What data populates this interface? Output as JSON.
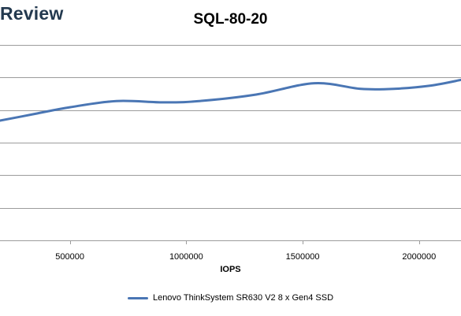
{
  "header": {
    "watermark": "Review"
  },
  "chart_data": {
    "type": "line",
    "title": "SQL-80-20",
    "xlabel": "IOPS",
    "ylabel": "",
    "xlim": [
      200000,
      2180000
    ],
    "ylim": [
      0,
      100
    ],
    "x_ticks": [
      500000,
      1000000,
      1500000,
      2000000
    ],
    "y_gridlines": [
      0,
      16.67,
      33.33,
      50,
      66.67,
      83.33,
      100
    ],
    "grid": true,
    "legend_position": "bottom",
    "series": [
      {
        "name": "Lenovo ThinkSystem SR630 V2 8 x Gen4 SSD",
        "color": "#4a76b4",
        "x": [
          200000,
          350000,
          500000,
          700000,
          900000,
          1050000,
          1300000,
          1550000,
          1750000,
          1900000,
          2050000,
          2180000
        ],
        "y": [
          61.3,
          64.7,
          68.1,
          71.3,
          70.6,
          71.2,
          74.6,
          80.4,
          77.5,
          77.6,
          79.2,
          82.1
        ]
      }
    ]
  }
}
